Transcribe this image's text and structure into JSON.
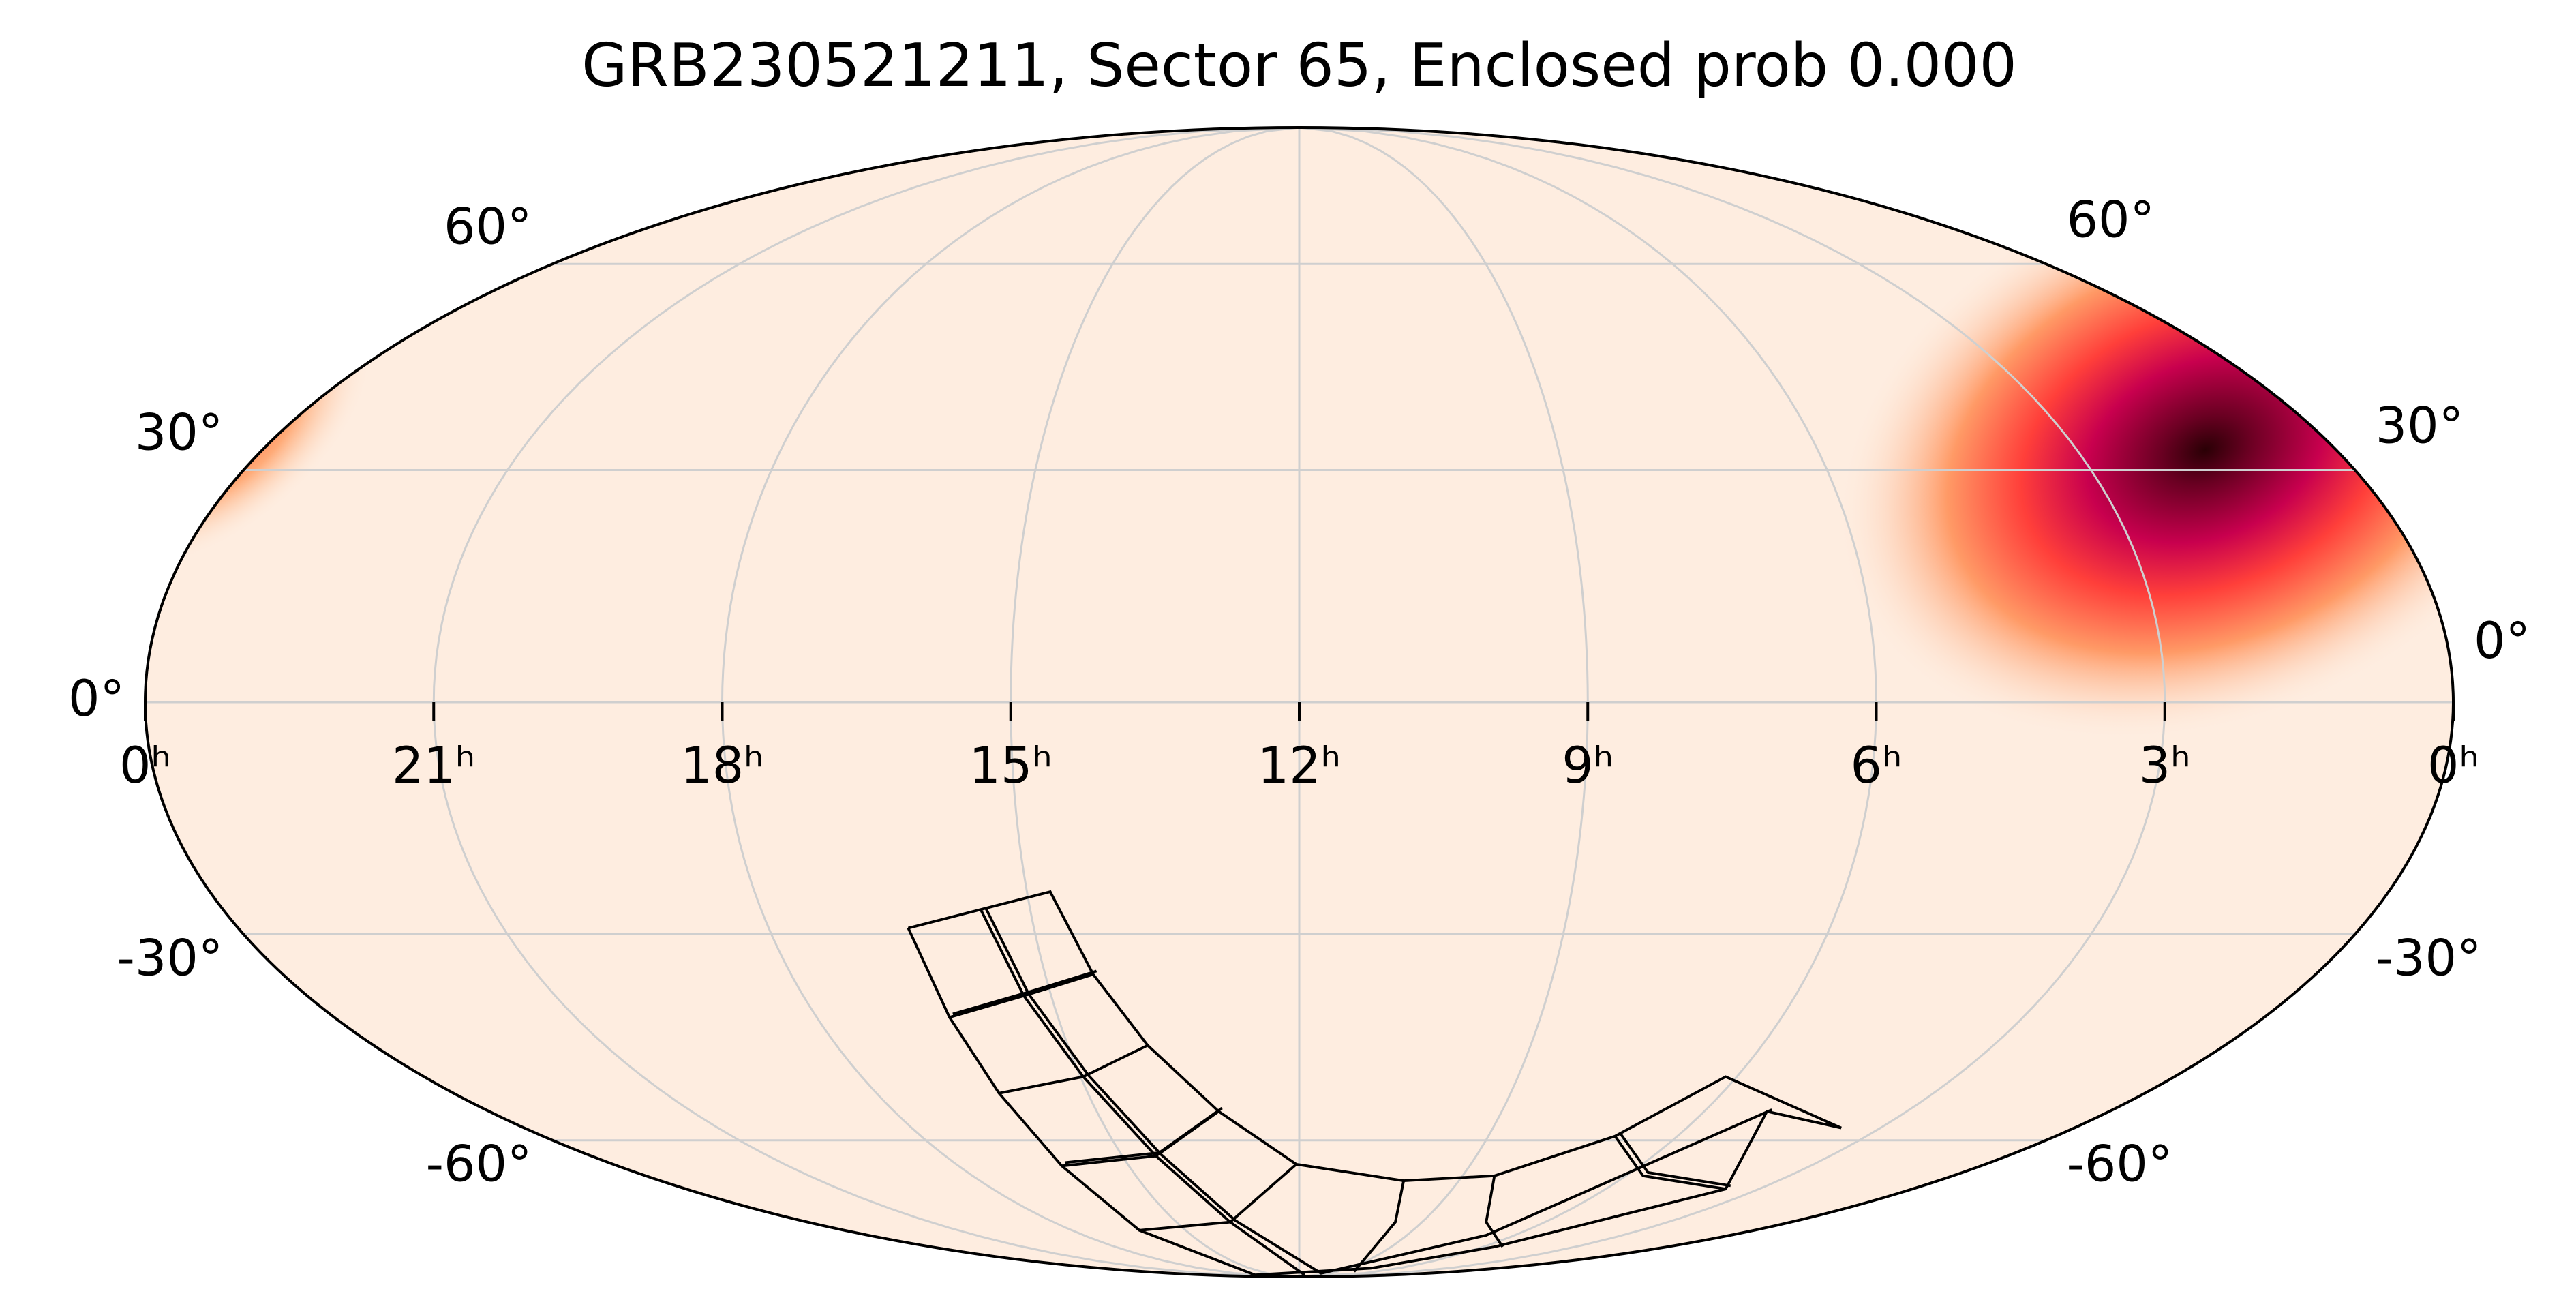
{
  "chart_data": {
    "type": "mollweide",
    "title": "GRB230521211, Sector 65, Enclosed prob 0.000",
    "xlim": [
      24,
      0
    ],
    "ylim": [
      -90,
      90
    ],
    "xticks": [
      {
        "value": 24,
        "label": "0ʰ"
      },
      {
        "value": 21,
        "label": "21ʰ"
      },
      {
        "value": 18,
        "label": "18ʰ"
      },
      {
        "value": 15,
        "label": "15ʰ"
      },
      {
        "value": 12,
        "label": "12ʰ"
      },
      {
        "value": 9,
        "label": "9ʰ"
      },
      {
        "value": 6,
        "label": "6ʰ"
      },
      {
        "value": 3,
        "label": "3ʰ"
      },
      {
        "value": 0,
        "label": "0ʰ"
      }
    ],
    "yticks": [
      {
        "value": -60,
        "label": "-60°"
      },
      {
        "value": -30,
        "label": "-30°"
      },
      {
        "value": 0,
        "label": "0°"
      },
      {
        "value": 30,
        "label": "30°"
      },
      {
        "value": 60,
        "label": "60°"
      }
    ],
    "grid": true
  }
}
